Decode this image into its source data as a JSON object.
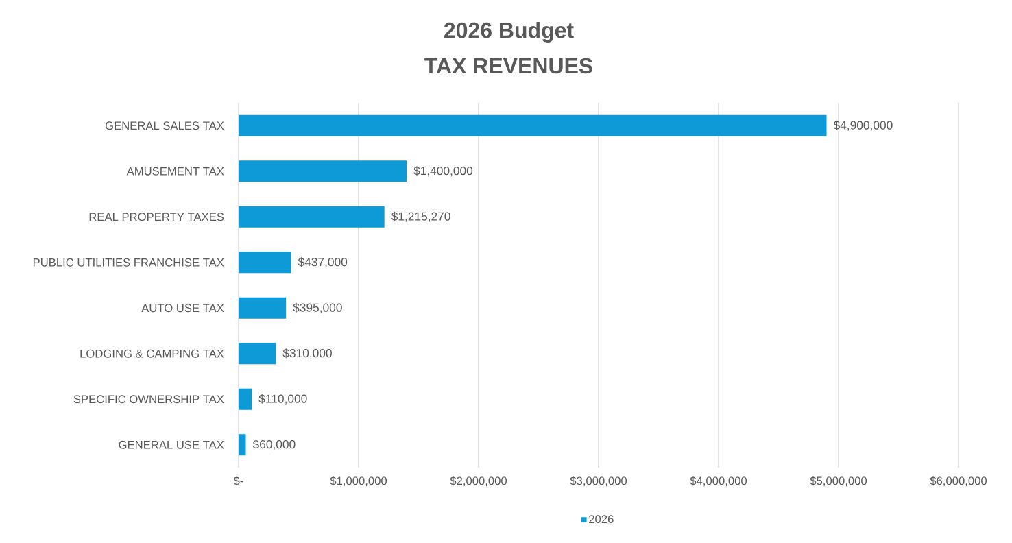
{
  "chart_data": {
    "type": "bar",
    "orientation": "horizontal",
    "title": "2026 Budget",
    "subtitle": "TAX REVENUES",
    "categories": [
      "GENERAL SALES TAX",
      "AMUSEMENT TAX",
      "REAL PROPERTY TAXES",
      "PUBLIC UTILITIES FRANCHISE TAX",
      "AUTO USE TAX",
      "LODGING & CAMPING TAX",
      "SPECIFIC OWNERSHIP TAX",
      "GENERAL USE TAX"
    ],
    "series": [
      {
        "name": "2026",
        "color": "#0e9ad7",
        "values": [
          4900000,
          1400000,
          1215270,
          437000,
          395000,
          310000,
          110000,
          60000
        ],
        "value_labels": [
          "$4,900,000",
          "$1,400,000",
          "$1,215,270",
          "$437,000",
          "$395,000",
          "$310,000",
          "$110,000",
          "$60,000"
        ]
      }
    ],
    "xlim": [
      0,
      6000000
    ],
    "xticks": [
      {
        "value": 0,
        "label": "$-"
      },
      {
        "value": 1000000,
        "label": "$1,000,000"
      },
      {
        "value": 2000000,
        "label": "$2,000,000"
      },
      {
        "value": 3000000,
        "label": "$3,000,000"
      },
      {
        "value": 4000000,
        "label": "$4,000,000"
      },
      {
        "value": 5000000,
        "label": "$5,000,000"
      },
      {
        "value": 6000000,
        "label": "$6,000,000"
      }
    ],
    "grid": "x",
    "legend": "bottom"
  }
}
